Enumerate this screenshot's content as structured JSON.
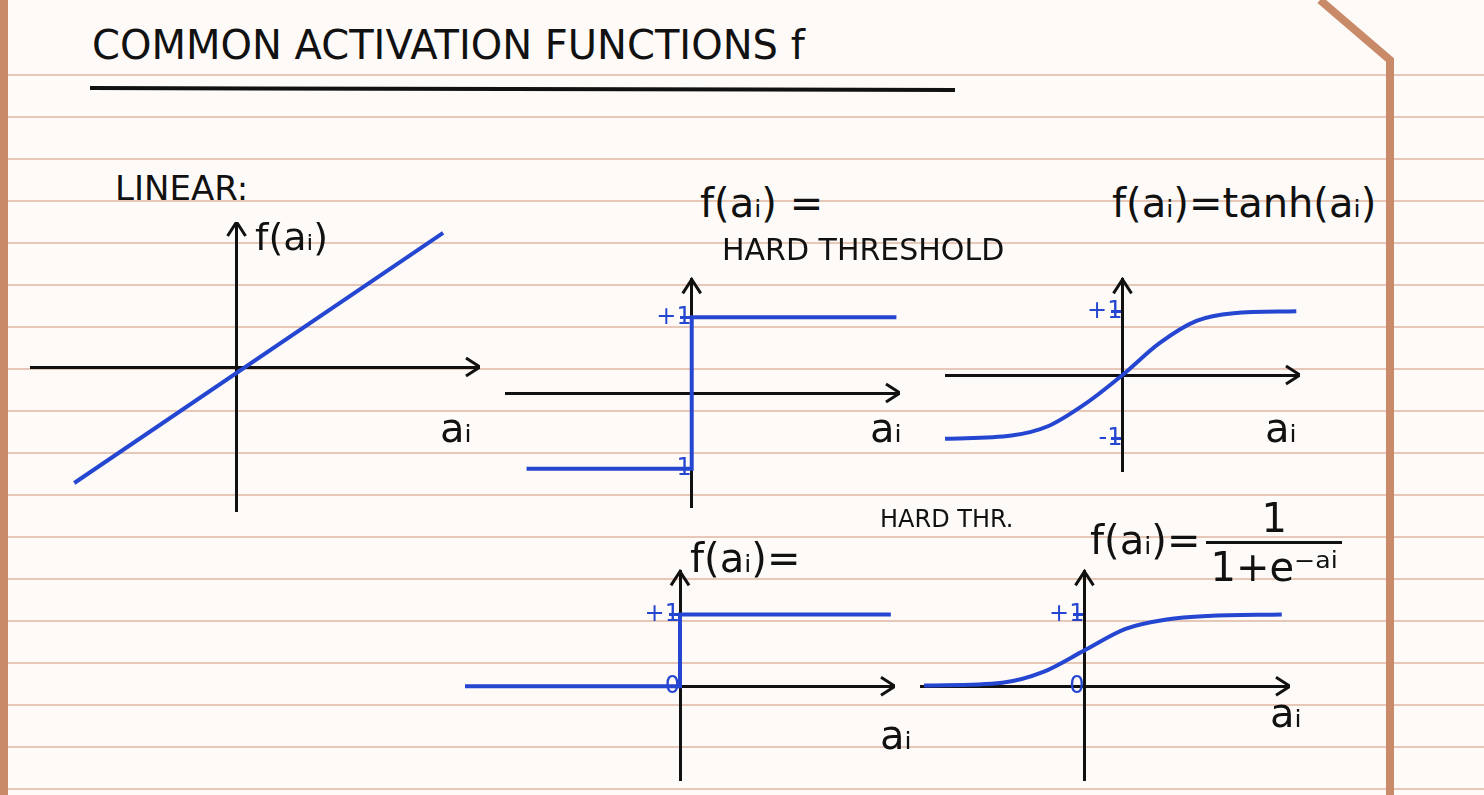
{
  "title": "COMMON ACTIVATION FUNCTIONS f",
  "chart_data": [
    {
      "type": "line",
      "title": "LINEAR:",
      "y_label": "f(aᵢ)",
      "x_label": "aᵢ",
      "x": [
        -2.2,
        2.8
      ],
      "values": [
        -1.6,
        1.85
      ],
      "color": "#2546d0",
      "line_style": "solid",
      "xlim": [
        -2.8,
        3.3
      ],
      "ylim": [
        -2,
        2
      ],
      "tick_labels": false,
      "grid": false
    },
    {
      "type": "line",
      "title": "f(aᵢ) =",
      "subtitle": "HARD THRESHOLD",
      "x_label": "aᵢ",
      "x": [
        -2.3,
        0,
        0,
        2.85
      ],
      "values": [
        -1,
        -1,
        1,
        1
      ],
      "color": "#2546d0",
      "line_style": "solid",
      "xlim": [
        -2.6,
        2.9
      ],
      "ylim": [
        -1.5,
        1.5
      ],
      "yticks": [
        {
          "value": -1,
          "label": "-1"
        },
        {
          "value": 1,
          "label": "+1"
        }
      ],
      "tick_labels": "y",
      "grid": false
    },
    {
      "type": "line",
      "title": "f(aᵢ)=tanh(aᵢ)",
      "x_label": "aᵢ",
      "x": [
        -2.4,
        -1.5,
        -1,
        -0.5,
        0,
        0.5,
        1,
        1.5,
        2.35
      ],
      "values": [
        -1,
        -0.95,
        -0.8,
        -0.45,
        0,
        0.5,
        0.85,
        0.97,
        1
      ],
      "color": "#2546d0",
      "line_style": "smooth",
      "xlim": [
        -2.4,
        2.4
      ],
      "ylim": [
        -1.5,
        1.5
      ],
      "yticks": [
        {
          "value": -1,
          "label": "-1"
        },
        {
          "value": 1,
          "label": "+1"
        }
      ],
      "tick_labels": "y",
      "grid": false
    },
    {
      "type": "line",
      "title": "f(aᵢ)=",
      "subtitle": "HARD THR.",
      "x_label": "aᵢ",
      "x": [
        -2.6,
        0,
        0,
        2.55
      ],
      "values": [
        0,
        0,
        1,
        1
      ],
      "color": "#2546d0",
      "line_style": "solid",
      "xlim": [
        -2.6,
        2.6
      ],
      "ylim": [
        -1.3,
        1.6
      ],
      "yticks": [
        0,
        {
          "value": 1,
          "label": "+1"
        }
      ],
      "tick_labels": "y",
      "grid": false
    },
    {
      "type": "line",
      "title": "f(aᵢ)=",
      "title_numerator": "1",
      "title_denominator": "1+e⁻ᵃⁱ",
      "x_label": "aᵢ",
      "x": [
        -1.95,
        -1,
        -0.5,
        0,
        0.5,
        1,
        1.5,
        2.4
      ],
      "values": [
        0.01,
        0.05,
        0.2,
        0.5,
        0.8,
        0.93,
        0.98,
        1
      ],
      "color": "#2546d0",
      "line_style": "smooth",
      "xlim": [
        -2,
        2.5
      ],
      "ylim": [
        -1.3,
        1.6
      ],
      "yticks": [
        0,
        {
          "value": 1,
          "label": "+1"
        }
      ],
      "tick_labels": "y",
      "grid": false
    }
  ]
}
